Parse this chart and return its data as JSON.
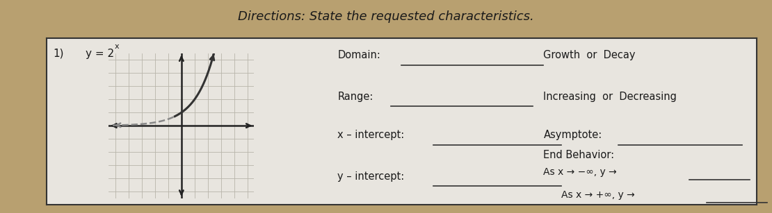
{
  "title": "Directions: State the requested characteristics.",
  "problem_label": "1)",
  "equation_base": "y = 2",
  "equation_exp": "x",
  "desk_color": "#b8a070",
  "paper_color": "#e8e5df",
  "box_color": "#dddad3",
  "grid_color": "#b8b4aa",
  "axis_color": "#222222",
  "curve_color": "#444444",
  "text_color": "#1a1a1a",
  "labels": {
    "domain": "Domain:",
    "range": "Range:",
    "x_intercept": "x – intercept:",
    "y_intercept": "y – intercept:",
    "growth_decay": "Growth  or  Decay",
    "increasing_decreasing": "Increasing  or  Decreasing",
    "asymptote": "Asymptote:",
    "end_behavior": "End Behavior:",
    "end_neg": "As x → −∞, y →",
    "end_pos": "As x → +∞, y →"
  },
  "graph_xlim": [
    -5.5,
    5.5
  ],
  "graph_ylim": [
    -5.5,
    5.5
  ],
  "grid_ticks": [
    -5,
    -4,
    -3,
    -2,
    -1,
    0,
    1,
    2,
    3,
    4,
    5
  ]
}
